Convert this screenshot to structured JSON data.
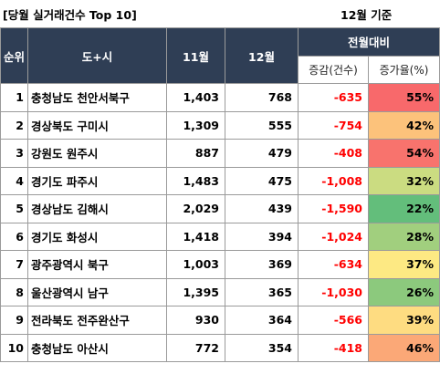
{
  "title": "[당월 실거래건수 Top 10]",
  "basis": "12월 기준",
  "headers": {
    "rank": "순위",
    "region": "도+시",
    "nov": "11월",
    "dec": "12월",
    "compare": "전월대비",
    "change": "증감(건수)",
    "rate": "증가율(%)"
  },
  "rows": [
    {
      "rank": "1",
      "region": "충청남도 천안서북구",
      "nov": "1,403",
      "dec": "768",
      "change": "-635",
      "rate": "55%",
      "rate_color": "#f8696b"
    },
    {
      "rank": "2",
      "region": "경상북도 구미시",
      "nov": "1,309",
      "dec": "555",
      "change": "-754",
      "rate": "42%",
      "rate_color": "#fcc27b"
    },
    {
      "rank": "3",
      "region": "강원도 원주시",
      "nov": "887",
      "dec": "479",
      "change": "-408",
      "rate": "54%",
      "rate_color": "#f8736d"
    },
    {
      "rank": "4",
      "region": "경기도 파주시",
      "nov": "1,483",
      "dec": "475",
      "change": "-1,008",
      "rate": "32%",
      "rate_color": "#cbdc81"
    },
    {
      "rank": "5",
      "region": "경상남도 김해시",
      "nov": "2,029",
      "dec": "439",
      "change": "-1,590",
      "rate": "22%",
      "rate_color": "#63be7b"
    },
    {
      "rank": "6",
      "region": "경기도 화성시",
      "nov": "1,418",
      "dec": "394",
      "change": "-1,024",
      "rate": "28%",
      "rate_color": "#a1cf7e"
    },
    {
      "rank": "7",
      "region": "광주광역시 북구",
      "nov": "1,003",
      "dec": "369",
      "change": "-634",
      "rate": "37%",
      "rate_color": "#fde983"
    },
    {
      "rank": "8",
      "region": "울산광역시 남구",
      "nov": "1,395",
      "dec": "365",
      "change": "-1,030",
      "rate": "26%",
      "rate_color": "#8cc97d"
    },
    {
      "rank": "9",
      "region": "전라북도 전주완산구",
      "nov": "930",
      "dec": "364",
      "change": "-566",
      "rate": "39%",
      "rate_color": "#fedc81"
    },
    {
      "rank": "10",
      "region": "충청남도 아산시",
      "nov": "772",
      "dec": "354",
      "change": "-418",
      "rate": "46%",
      "rate_color": "#fba877"
    }
  ]
}
